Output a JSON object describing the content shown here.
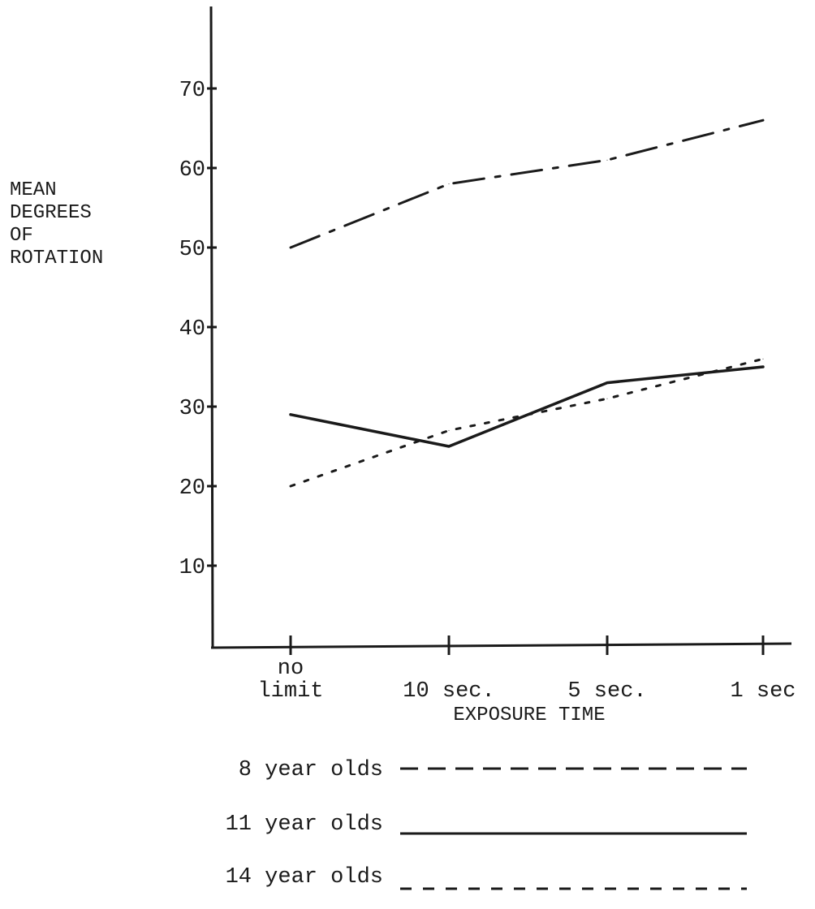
{
  "chart_data": {
    "type": "line",
    "categories": [
      "no limit",
      "10 sec.",
      "5 sec.",
      "1 sec"
    ],
    "category_labels": [
      [
        "no",
        "limit"
      ],
      [
        "10 sec."
      ],
      [
        "5 sec."
      ],
      [
        "1 sec"
      ]
    ],
    "series": [
      {
        "name": "8 year olds",
        "values": [
          50,
          58,
          61,
          66
        ],
        "style": "dashdot",
        "color": "#1a1a1a"
      },
      {
        "name": "11 year olds",
        "values": [
          29,
          25,
          33,
          35
        ],
        "style": "solid",
        "color": "#1a1a1a"
      },
      {
        "name": "14 year olds",
        "values": [
          20,
          27,
          31,
          36
        ],
        "style": "dotted",
        "color": "#1a1a1a"
      }
    ],
    "ylabel_lines": [
      "MEAN",
      "DEGREES",
      "OF",
      "ROTATION"
    ],
    "xlabel": "EXPOSURE TIME",
    "yticks": [
      10,
      20,
      30,
      40,
      50,
      60,
      70
    ],
    "ylim": [
      0,
      80
    ],
    "grid": false,
    "legend_position": "bottom"
  },
  "legend": {
    "items": [
      {
        "label": "8 year olds",
        "style": "dashed"
      },
      {
        "label": "11 year olds",
        "style": "solid"
      },
      {
        "label": "14 year olds",
        "style": "dotted"
      }
    ]
  }
}
